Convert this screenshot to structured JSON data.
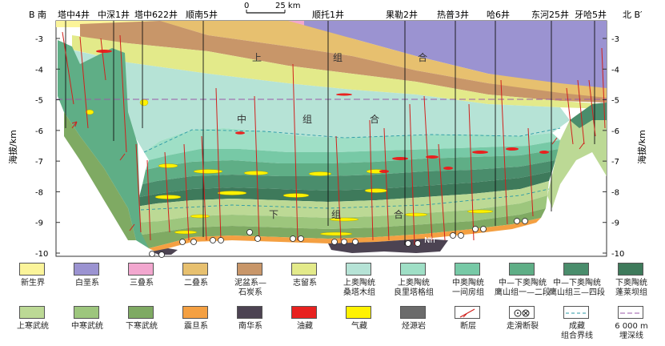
{
  "section": {
    "start_label": "B 南",
    "end_label": "北 B′",
    "scale_zero": "0",
    "scale_end": "25 km",
    "y_axis_title": "海拔/km",
    "y_ticks_left": [
      "-3",
      "-4",
      "-5",
      "-6",
      "-7",
      "-8",
      "-9",
      "-10"
    ],
    "y_ticks_right": [
      "-3",
      "-4",
      "-5",
      "-6",
      "-7",
      "-8",
      "-9",
      "-10"
    ],
    "y_range_km": [
      -10,
      -2.5
    ],
    "reference_line_depth_km": -5,
    "wells": [
      {
        "name": "塔中4井",
        "depth_km": -6.2
      },
      {
        "name": "中深1井",
        "depth_km": -7.0
      },
      {
        "name": "塔中622井",
        "depth_km": -6.6
      },
      {
        "name": "顺南5井",
        "depth_km": -8.9
      },
      {
        "name": "顺托1井",
        "depth_km": -8.4
      },
      {
        "name": "果勒2井",
        "depth_km": -9.3
      },
      {
        "name": "热普3井",
        "depth_km": -8.9
      },
      {
        "name": "哈6井",
        "depth_km": -8.3
      },
      {
        "name": "东河25井",
        "depth_km": -7.7
      },
      {
        "name": "牙哈5井",
        "depth_km": -6.5
      }
    ],
    "combination_labels": {
      "upper": [
        "上",
        "组",
        "合"
      ],
      "middle": [
        "中",
        "组",
        "合"
      ],
      "lower": [
        "下",
        "组",
        "合"
      ]
    },
    "nh_label": "Nh"
  },
  "legend": [
    {
      "label": [
        "新生界"
      ],
      "color": "#fbf49a"
    },
    {
      "label": [
        "白垩系"
      ],
      "color": "#9b93d1"
    },
    {
      "label": [
        "三叠系"
      ],
      "color": "#f2a7cf"
    },
    {
      "label": [
        "二叠系"
      ],
      "color": "#e7c06f"
    },
    {
      "label": [
        "泥盆系—",
        "石炭系"
      ],
      "color": "#c89669"
    },
    {
      "label": [
        "志留系"
      ],
      "color": "#e3ea8a"
    },
    {
      "label": [
        "上奥陶统",
        "桑塔木组"
      ],
      "color": "#b6e3d6"
    },
    {
      "label": [
        "上奥陶统",
        "良里塔格组"
      ],
      "color": "#9fdfc6"
    },
    {
      "label": [
        "中奥陶统",
        "一间房组"
      ],
      "color": "#77c9a6"
    },
    {
      "label": [
        "中—下奥陶统",
        "鹰山组一—二段"
      ],
      "color": "#5fae86"
    },
    {
      "label": [
        "中—下奥陶统",
        "鹰山组三—四段"
      ],
      "color": "#4a8d6c"
    },
    {
      "label": [
        "下奥陶统",
        "蓬莱坝组"
      ],
      "color": "#3e7a5b"
    },
    {
      "label": [
        "上寒武统"
      ],
      "color": "#bcd995"
    },
    {
      "label": [
        "中寒武统"
      ],
      "color": "#9dc67d"
    },
    {
      "label": [
        "下寒武统"
      ],
      "color": "#7faa63"
    },
    {
      "label": [
        "震旦系"
      ],
      "color": "#f4a042"
    },
    {
      "label": [
        "南华系"
      ],
      "color": "#4c4352"
    },
    {
      "label": [
        "油藏"
      ],
      "color": "#e8211f"
    },
    {
      "label": [
        "气藏"
      ],
      "color": "#fff200"
    },
    {
      "label": [
        "烃源岩"
      ],
      "color": "#6b6b6b"
    },
    {
      "label": [
        "断层"
      ],
      "color": "#ffffff"
    },
    {
      "label": [
        "走滑断裂"
      ],
      "color": "#ffffff"
    },
    {
      "label": [
        "成藏",
        "组合界线"
      ],
      "color": "#ffffff"
    },
    {
      "label": [
        "6 000 m",
        "埋深线"
      ],
      "color": "#ffffff"
    }
  ]
}
